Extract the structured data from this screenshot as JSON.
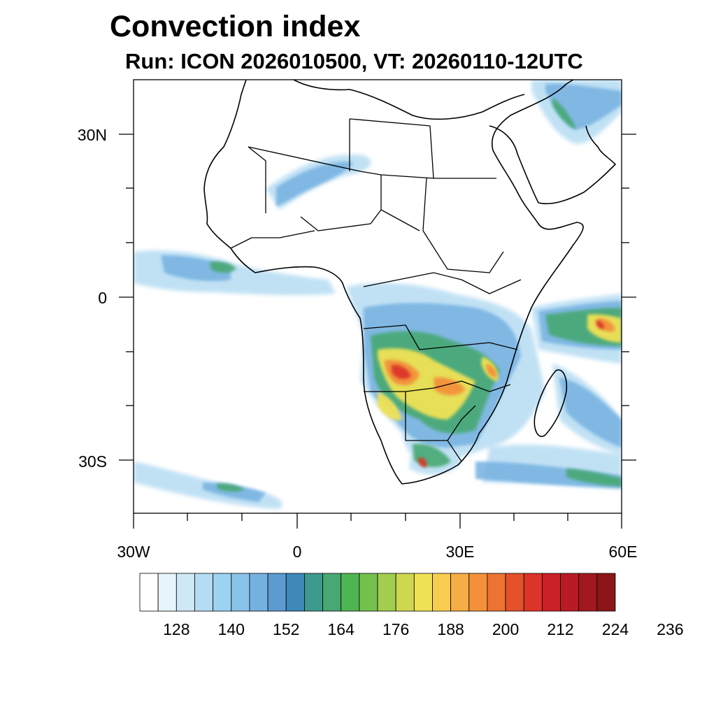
{
  "title": "Convection index",
  "subtitle": "Run: ICON 2026010500,  VT: 20260110-12UTC",
  "axes": {
    "lat_labels": [
      "30N",
      "0",
      "30S"
    ],
    "lat_values": [
      30,
      0,
      -30
    ],
    "lon_labels": [
      "30W",
      "0",
      "30E",
      "60E"
    ],
    "lon_values": [
      -30,
      0,
      30,
      60
    ],
    "lon_range": [
      -30,
      60
    ],
    "lat_range": [
      -40,
      40
    ]
  },
  "colorbar": {
    "labels": [
      "128",
      "140",
      "152",
      "164",
      "176",
      "188",
      "200",
      "212",
      "224",
      "236"
    ],
    "colors": [
      "#ffffff",
      "#e8f4fb",
      "#cfe8f6",
      "#b6dcf3",
      "#9dd3f2",
      "#8ac3ea",
      "#74b1e1",
      "#5b9bd0",
      "#3e89b8",
      "#3f9a8e",
      "#47a873",
      "#4fb553",
      "#74c04c",
      "#a3cd4e",
      "#cdd84f",
      "#efe255",
      "#f8cd4f",
      "#f6ad45",
      "#f3913b",
      "#ee7231",
      "#e5512b",
      "#dc3429",
      "#cc2027",
      "#b81b24",
      "#a2181f",
      "#8c1519"
    ]
  },
  "colors": {
    "light_blue": "#9dd3f2",
    "blue": "#5b9bd0",
    "green": "#47a873",
    "yellow": "#efe255",
    "orange": "#f3913b",
    "red": "#dc3429"
  }
}
